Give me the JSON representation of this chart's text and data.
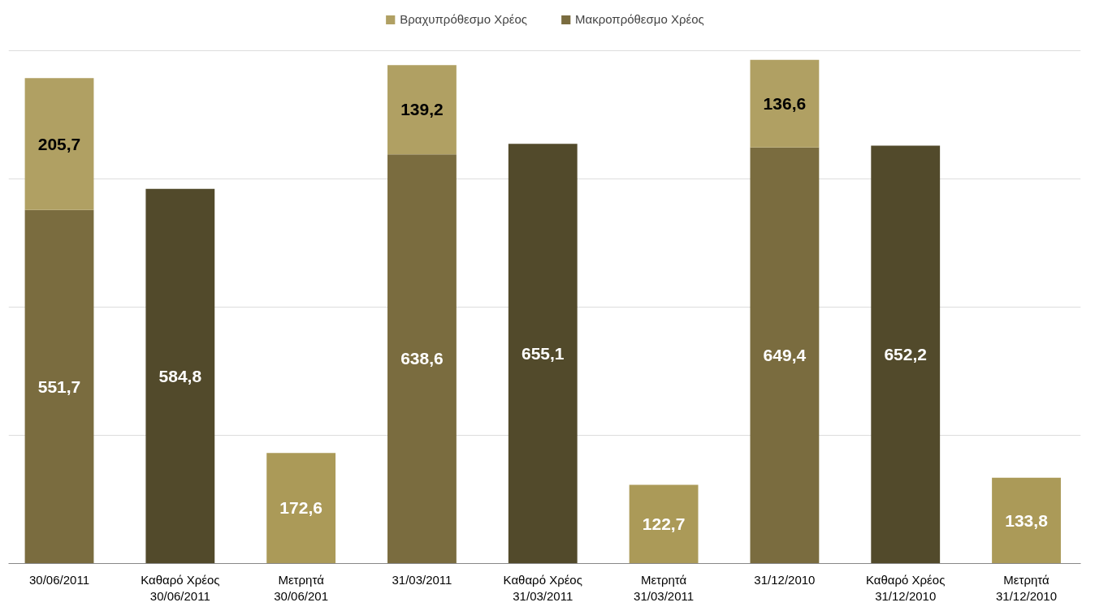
{
  "chart_data": {
    "type": "bar",
    "stacked": true,
    "categories": [
      "30/06/2011",
      "Καθαρό Χρέος\n30/06/2011",
      "Μετρητά\n30/06/201",
      "31/03/2011",
      "Καθαρό Χρέος\n31/03/2011",
      "Μετρητά\n31/03/2011",
      "31/12/2010",
      "Καθαρό Χρέος\n31/12/2010",
      "Μετρητά\n31/12/2010"
    ],
    "series": [
      {
        "name": "Μακροπρόθεσμο Χρέος",
        "color": "#7a6c3f",
        "values": [
          551.7,
          null,
          null,
          638.6,
          null,
          null,
          649.4,
          null,
          null
        ],
        "value_labels": [
          "551,7",
          null,
          null,
          "638,6",
          null,
          null,
          "649,4",
          null,
          null
        ]
      },
      {
        "name": "Βραχυπρόθεσμο Χρέος",
        "color": "#b0a063",
        "values": [
          205.7,
          null,
          null,
          139.2,
          null,
          null,
          136.6,
          null,
          null
        ],
        "value_labels": [
          "205,7",
          null,
          null,
          "139,2",
          null,
          null,
          "136,6",
          null,
          null
        ]
      },
      {
        "colors": [
          null,
          "#524a2b",
          "#ab9a58",
          null,
          "#524a2b",
          "#ab9a58",
          null,
          "#524a2b",
          "#ab9a58"
        ],
        "values": [
          null,
          584.8,
          172.6,
          null,
          655.1,
          122.7,
          null,
          652.2,
          133.8
        ],
        "value_labels": [
          null,
          "584,8",
          "172,6",
          null,
          "655,1",
          "122,7",
          null,
          "652,2",
          "133,8"
        ]
      }
    ],
    "grid": "y",
    "tick_labels": "x",
    "legend": "top"
  }
}
